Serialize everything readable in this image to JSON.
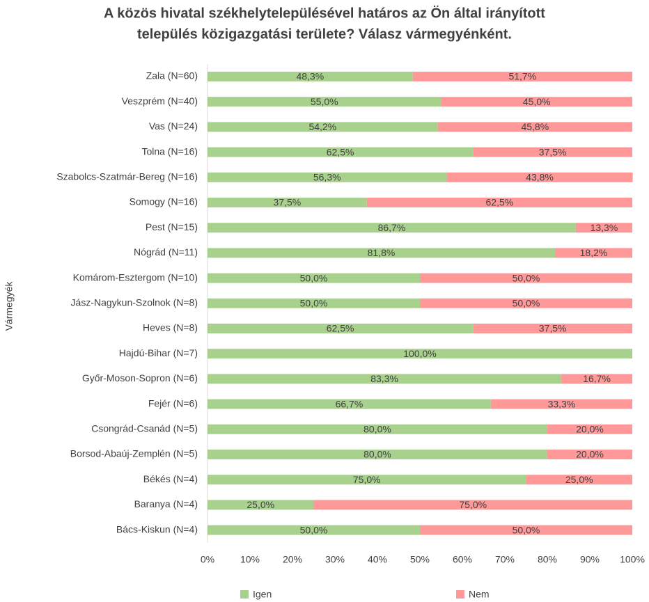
{
  "chart_data": {
    "type": "stacked_barh",
    "title": "A közös hivatal székhelytelepülésével határos az Ön által irányított",
    "subtitle": "település közigazgatási területe? Válasz vármegyénként.",
    "ylabel": "Vármegyék",
    "categories": [
      "Zala (N=60)",
      "Veszprém (N=40)",
      "Vas (N=24)",
      "Tolna (N=16)",
      "Szabolcs-Szatmár-Bereg (N=16)",
      "Somogy (N=16)",
      "Pest (N=15)",
      "Nógrád (N=11)",
      "Komárom-Esztergom (N=10)",
      "Jász-Nagykun-Szolnok (N=8)",
      "Heves (N=8)",
      "Hajdú-Bihar (N=7)",
      "Győr-Moson-Sopron (N=6)",
      "Fejér (N=6)",
      "Csongrád-Csanád (N=5)",
      "Borsod-Abaúj-Zemplén (N=5)",
      "Békés (N=4)",
      "Baranya (N=4)",
      "Bács-Kiskun (N=4)"
    ],
    "series": [
      {
        "name": "Igen",
        "color": "#a9d18e",
        "values": [
          48.3,
          55.0,
          54.2,
          62.5,
          56.3,
          37.5,
          86.7,
          81.8,
          50.0,
          50.0,
          62.5,
          100.0,
          83.3,
          66.7,
          80.0,
          80.0,
          75.0,
          25.0,
          50.0
        ],
        "value_labels": [
          "48,3%",
          "55,0%",
          "54,2%",
          "62,5%",
          "56,3%",
          "37,5%",
          "86,7%",
          "81,8%",
          "50,0%",
          "50,0%",
          "62,5%",
          "100,0%",
          "83,3%",
          "66,7%",
          "80,0%",
          "80,0%",
          "75,0%",
          "25,0%",
          "50,0%"
        ]
      },
      {
        "name": "Nem",
        "color": "#ff9999",
        "values": [
          51.7,
          45.0,
          45.8,
          37.5,
          43.8,
          62.5,
          13.3,
          18.2,
          50.0,
          50.0,
          37.5,
          0,
          16.7,
          33.3,
          20.0,
          20.0,
          25.0,
          75.0,
          50.0
        ],
        "value_labels": [
          "51,7%",
          "45,0%",
          "45,8%",
          "37,5%",
          "43,8%",
          "62,5%",
          "13,3%",
          "18,2%",
          "50,0%",
          "50,0%",
          "37,5%",
          null,
          "16,7%",
          "33,3%",
          "20,0%",
          "20,0%",
          "25,0%",
          "75,0%",
          "50,0%"
        ]
      }
    ],
    "xlim": [
      0,
      100
    ],
    "xticks": [
      {
        "value": 0,
        "label": "0%"
      },
      {
        "value": 10,
        "label": "10%"
      },
      {
        "value": 20,
        "label": "20%"
      },
      {
        "value": 30,
        "label": "30%"
      },
      {
        "value": 40,
        "label": "40%"
      },
      {
        "value": 50,
        "label": "50%"
      },
      {
        "value": 60,
        "label": "60%"
      },
      {
        "value": 70,
        "label": "70%"
      },
      {
        "value": 80,
        "label": "80%"
      },
      {
        "value": 90,
        "label": "90%"
      },
      {
        "value": 100,
        "label": "100%"
      }
    ],
    "legend": "bottom"
  }
}
